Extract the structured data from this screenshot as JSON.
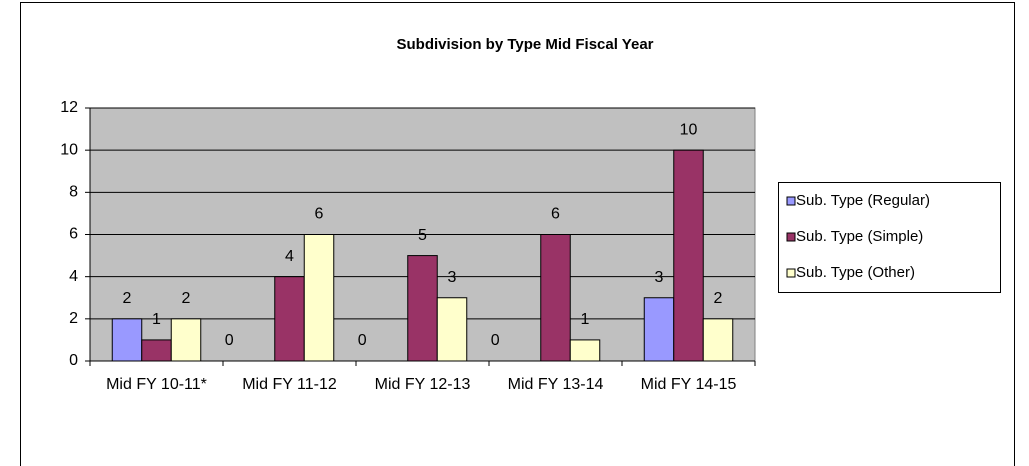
{
  "chart_data": {
    "type": "bar",
    "title": "Subdivision by Type Mid Fiscal Year",
    "categories": [
      "Mid FY 10-11*",
      "Mid FY 11-12",
      "Mid FY 12-13",
      "Mid FY 13-14",
      "Mid FY 14-15"
    ],
    "series": [
      {
        "name": "Sub. Type (Regular)",
        "color": "#9999ff",
        "values": [
          2,
          0,
          0,
          0,
          3
        ]
      },
      {
        "name": "Sub. Type (Simple)",
        "color": "#993366",
        "values": [
          1,
          4,
          5,
          6,
          10
        ]
      },
      {
        "name": "Sub. Type (Other)",
        "color": "#ffffcc",
        "values": [
          2,
          6,
          3,
          1,
          2
        ]
      }
    ],
    "ylim": [
      0,
      12
    ],
    "yticks": [
      0,
      2,
      4,
      6,
      8,
      10,
      12
    ],
    "grid": true,
    "legend": "right",
    "plot_background": "#c0c0c0"
  }
}
